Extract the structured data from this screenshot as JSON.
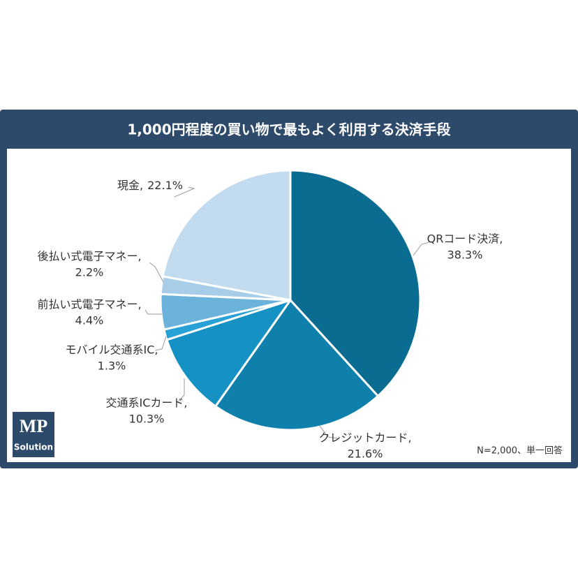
{
  "chart_data": {
    "type": "pie",
    "title": "1,000円程度の買い物で最もよく利用する決済手段",
    "categories": [
      "QRコード決済,",
      "クレジットカード,",
      "交通系ICカード,",
      "モバイル交通系IC,",
      "前払い式電子マネー,",
      "後払い式電子マネー,",
      "現金,"
    ],
    "values": [
      38.3,
      21.6,
      10.3,
      1.3,
      4.4,
      2.2,
      22.1
    ],
    "value_labels": [
      "38.3%",
      "21.6%",
      "10.3%",
      "1.3%",
      "4.4%",
      "2.2%",
      "22.1%"
    ],
    "colors": [
      "#0a6c91",
      "#0e80ab",
      "#1591c4",
      "#27a1d6",
      "#6cb3dc",
      "#a8cde8",
      "#c3dbee"
    ],
    "note": "N=2,000、単一回答"
  },
  "logo": {
    "main": "MP",
    "sub": "Solution"
  }
}
